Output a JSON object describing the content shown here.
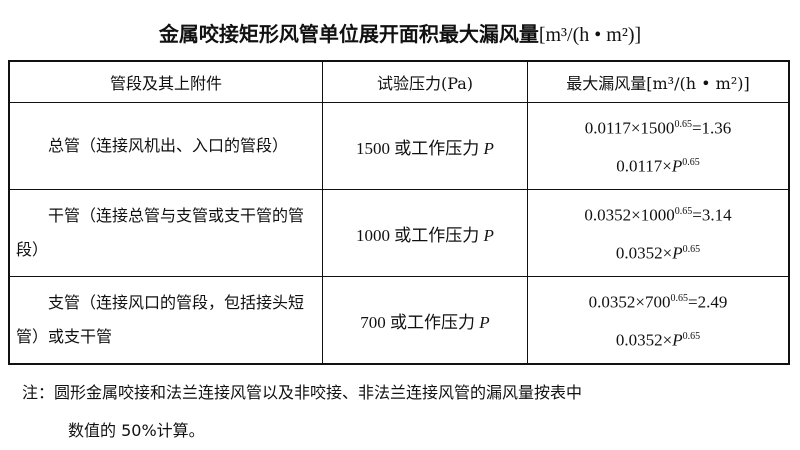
{
  "title": {
    "text": "金属咬接矩形风管单位展开面积最大漏风量",
    "unit": "[m³/(h • m²)]"
  },
  "table": {
    "headers": [
      "管段及其上附件",
      "试验压力(Pa)",
      "最大漏风量[m³/(h • m²)]"
    ],
    "rows": [
      {
        "segment": "总管（连接风机出、入口的管段）",
        "pressure": "1500 或工作压力 P",
        "leak_formula": "0.0117×1500^0.65=1.36",
        "leak_general": "0.0117×P^0.65",
        "f1a": "0.0117×1500",
        "f1e": "0.65",
        "f1b": "=1.36",
        "f2a": "0.0117×",
        "f2p": "P",
        "f2e": "0.65",
        "p_a": "1500 或工作压力 ",
        "p_p": "P"
      },
      {
        "segment": "干管（连接总管与支管或支干管的管段）",
        "pressure": "1000 或工作压力 P",
        "leak_formula": "0.0352×1000^0.65=3.14",
        "leak_general": "0.0352×P^0.65",
        "f1a": "0.0352×1000",
        "f1e": "0.65",
        "f1b": "=3.14",
        "f2a": "0.0352×",
        "f2p": "P",
        "f2e": "0.65",
        "p_a": "1000 或工作压力 ",
        "p_p": "P"
      },
      {
        "segment": "支管（连接风口的管段，包括接头短管）或支干管",
        "pressure": "700 或工作压力 P",
        "leak_formula": "0.0352×700^0.65=2.49",
        "leak_general": "0.0352×P^0.65",
        "f1a": "0.0352×700",
        "f1e": "0.65",
        "f1b": "=2.49",
        "f2a": "0.0352×",
        "f2p": "P",
        "f2e": "0.65",
        "p_a": "700 或工作压力 ",
        "p_p": "P"
      }
    ]
  },
  "note": {
    "line1": "注：圆形金属咬接和法兰连接风管以及非咬接、非法兰连接风管的漏风量按表中",
    "line2": "数值的 50%计算。"
  }
}
